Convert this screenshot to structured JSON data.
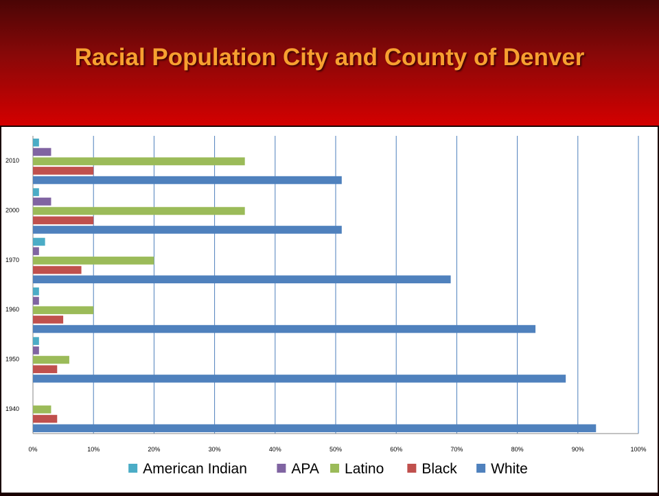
{
  "slide": {
    "title": "Racial Population City and County of Denver"
  },
  "chart_data": {
    "type": "bar",
    "orientation": "horizontal",
    "categories": [
      "1940",
      "1950",
      "1960",
      "1970",
      "2000",
      "2010"
    ],
    "series": [
      {
        "name": "American Indian",
        "color": "#4bacc6",
        "values": [
          0,
          1,
          1,
          2,
          1,
          1
        ]
      },
      {
        "name": "APA",
        "color": "#8064a2",
        "values": [
          0,
          1,
          1,
          1,
          3,
          3
        ]
      },
      {
        "name": "Latino",
        "color": "#9bbb59",
        "values": [
          3,
          6,
          10,
          20,
          35,
          35
        ]
      },
      {
        "name": "Black",
        "color": "#c0504d",
        "values": [
          4,
          4,
          5,
          8,
          10,
          10
        ]
      },
      {
        "name": "White",
        "color": "#4f81bd",
        "values": [
          93,
          88,
          83,
          69,
          51,
          51
        ]
      }
    ],
    "xlim": [
      0,
      100
    ],
    "x_ticks": [
      "0%",
      "10%",
      "20%",
      "30%",
      "40%",
      "50%",
      "60%",
      "70%",
      "80%",
      "90%",
      "100%"
    ],
    "grid": "vertical",
    "legend_position": "bottom"
  }
}
